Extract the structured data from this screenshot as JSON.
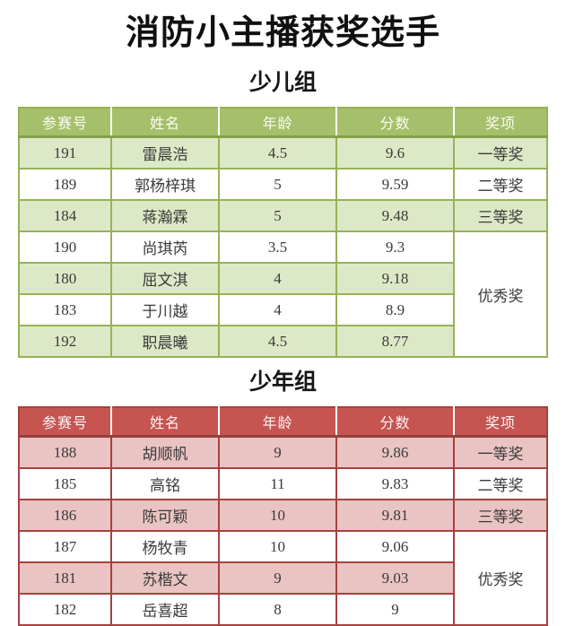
{
  "page": {
    "title": "消防小主播获奖选手",
    "background": "#ffffff"
  },
  "columns": [
    "参赛号",
    "姓名",
    "年龄",
    "分数",
    "奖项"
  ],
  "groups": [
    {
      "heading": "少儿组",
      "theme": {
        "header_bg": "#a5bf6a",
        "header_text": "#fbfcf2",
        "border": "#97b257",
        "shaded_row_bg": "#dde9c6",
        "plain_row_bg": "#ffffff"
      },
      "rows": [
        {
          "entry": "191",
          "name": "雷晨浩",
          "age": "4.5",
          "score": "9.6",
          "award": "一等奖"
        },
        {
          "entry": "189",
          "name": "郭杨梓琪",
          "age": "5",
          "score": "9.59",
          "award": "二等奖"
        },
        {
          "entry": "184",
          "name": "蒋瀚霖",
          "age": "5",
          "score": "9.48",
          "award": "三等奖"
        },
        {
          "entry": "190",
          "name": "尚琪芮",
          "age": "3.5",
          "score": "9.3",
          "award": "优秀奖",
          "award_rowspan": 4
        },
        {
          "entry": "180",
          "name": "屈文淇",
          "age": "4",
          "score": "9.18"
        },
        {
          "entry": "183",
          "name": "于川越",
          "age": "4",
          "score": "8.9"
        },
        {
          "entry": "192",
          "name": "职晨曦",
          "age": "4.5",
          "score": "8.77"
        }
      ]
    },
    {
      "heading": "少年组",
      "theme": {
        "header_bg": "#c65451",
        "header_text": "#fdf5f4",
        "border": "#a6413f",
        "shaded_row_bg": "#eac4c3",
        "plain_row_bg": "#ffffff"
      },
      "rows": [
        {
          "entry": "188",
          "name": "胡顺帆",
          "age": "9",
          "score": "9.86",
          "award": "一等奖"
        },
        {
          "entry": "185",
          "name": "高铭",
          "age": "11",
          "score": "9.83",
          "award": "二等奖"
        },
        {
          "entry": "186",
          "name": "陈可颖",
          "age": "10",
          "score": "9.81",
          "award": "三等奖"
        },
        {
          "entry": "187",
          "name": "杨牧青",
          "age": "10",
          "score": "9.06",
          "award": "优秀奖",
          "award_rowspan": 3
        },
        {
          "entry": "181",
          "name": "苏楷文",
          "age": "9",
          "score": "9.03"
        },
        {
          "entry": "182",
          "name": "岳喜超",
          "age": "8",
          "score": "9"
        }
      ]
    }
  ]
}
